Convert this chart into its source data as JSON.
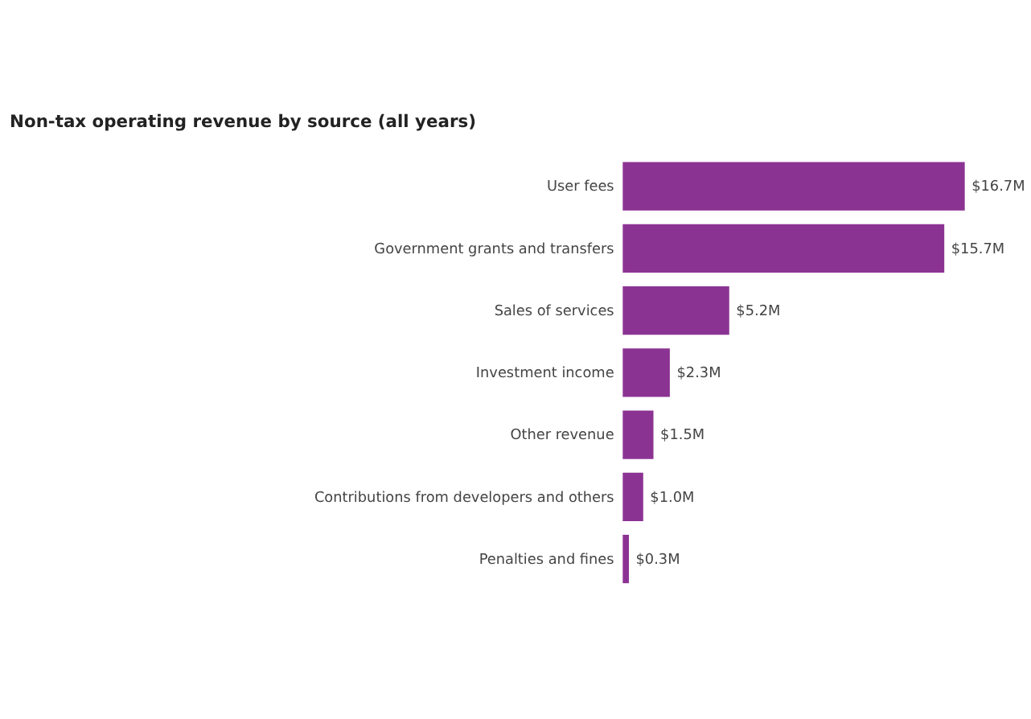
{
  "chart_data": {
    "type": "bar",
    "orientation": "horizontal",
    "title": "Non-tax operating revenue by source (all years)",
    "categories": [
      "User fees",
      "Government grants and transfers",
      "Sales of services",
      "Investment income",
      "Other revenue",
      "Contributions from developers and others",
      "Penalties and fines"
    ],
    "values": [
      16.7,
      15.7,
      5.2,
      2.3,
      1.5,
      1.0,
      0.3
    ],
    "value_labels": [
      "$16.7M",
      "$15.7M",
      "$5.2M",
      "$2.3M",
      "$1.5M",
      "$1.0M",
      "$0.3M"
    ],
    "color": "#8b3393"
  }
}
